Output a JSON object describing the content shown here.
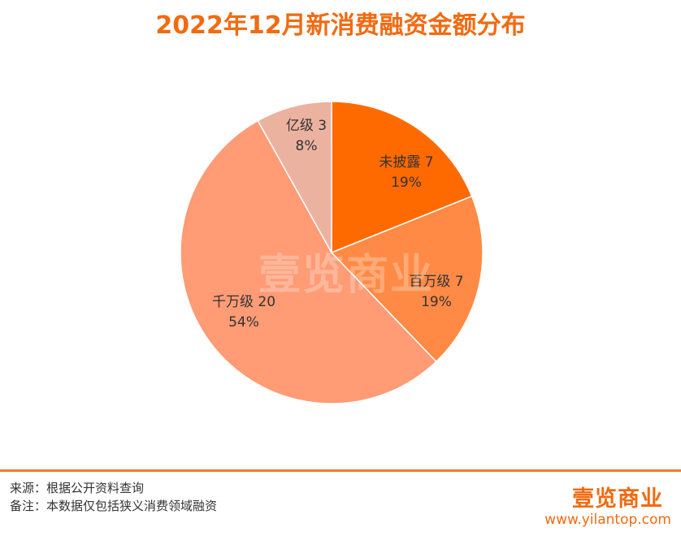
{
  "chart_data": {
    "type": "pie",
    "title": "2022年12月新消费融资金额分布",
    "slices": [
      {
        "label": "未披露",
        "value": 7,
        "percent": "19%",
        "color": "#ff6a00"
      },
      {
        "label": "百万级",
        "value": 7,
        "percent": "19%",
        "color": "#ff8a45"
      },
      {
        "label": "千万级",
        "value": 20,
        "percent": "54%",
        "color": "#ff9b75"
      },
      {
        "label": "亿级",
        "value": 3,
        "percent": "8%",
        "color": "#ecb2a0"
      }
    ]
  },
  "footer": {
    "source": "来源：根据公开资料查询",
    "note": "备注：本数据仅包括狭义消费领域融资"
  },
  "brand": {
    "logo_text": "壹览商业",
    "website": "www.yilantop.com"
  }
}
